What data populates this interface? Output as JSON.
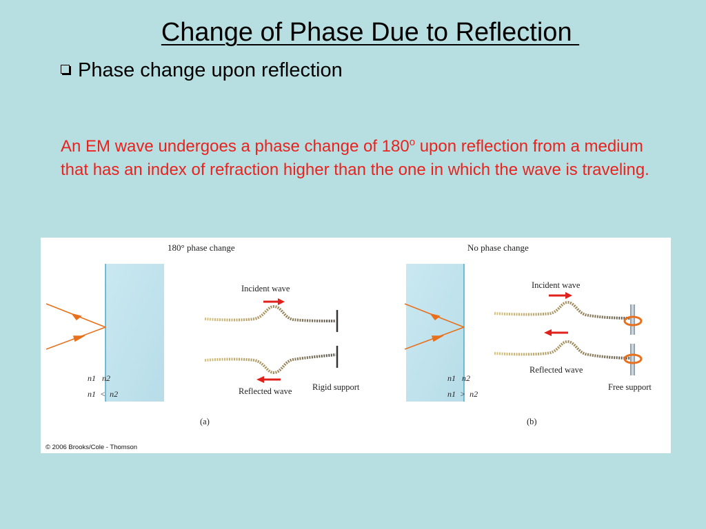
{
  "slide": {
    "title": "Change of Phase Due to Reflection ",
    "bullet": "Phase change upon reflection",
    "body_before_sup": "An EM wave undergoes a phase change of 180",
    "body_sup": "o",
    "body_after_sup": " upon reflection from a medium that has an index of refraction higher than the one in which the wave is traveling."
  },
  "colors": {
    "background": "#b7dfe1",
    "body_text": "#e8231f",
    "ray": "#e8701c",
    "arrow": "#e0201a",
    "glass": "#c4e4ee"
  },
  "figure": {
    "panel_a": {
      "heading": "180° phase change",
      "incident_label": "Incident wave",
      "reflected_label": "Reflected wave",
      "support_label": "Rigid support",
      "n_row1": "n1   n2",
      "n_row2": "n1  <  n2",
      "caption": "(a)"
    },
    "panel_b": {
      "heading": "No phase change",
      "incident_label": "Incident wave",
      "reflected_label": "Reflected wave",
      "support_label": "Free support",
      "n_row1": "n1   n2",
      "n_row2": "n1  >  n2",
      "caption": "(b)"
    },
    "copyright": "© 2006 Brooks/Cole - Thomson"
  }
}
